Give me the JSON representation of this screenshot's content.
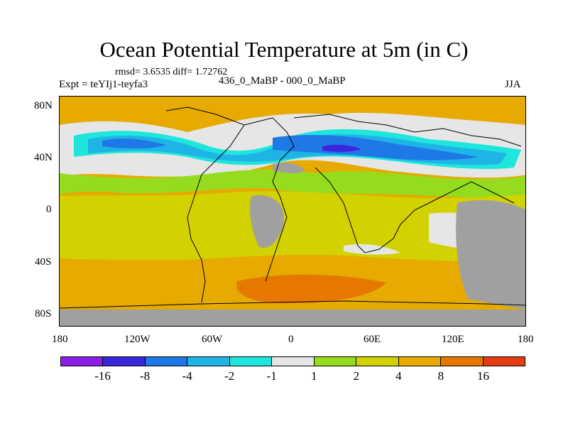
{
  "title": "Ocean Potential Temperature at 5m (in C)",
  "stats": "rmsd= 3.6535  diff= 1.72762",
  "experiment": "Expt = teYIj1-teyfa3",
  "comparison": "436_0_MaBP - 000_0_MaBP",
  "season": "JJA",
  "y_axis_labels": [
    "80N",
    "40N",
    "0",
    "40S",
    "80S"
  ],
  "x_axis_labels": [
    "180",
    "120W",
    "60W",
    "0",
    "60E",
    "120E",
    "180"
  ],
  "colorbar": {
    "colors": [
      "#8c1ee6",
      "#3c28dc",
      "#1e78e6",
      "#1eb4e6",
      "#1ee6dc",
      "#e6e6e6",
      "#96dc1e",
      "#d2d200",
      "#e6aa00",
      "#e67800",
      "#e63c14"
    ],
    "labels": [
      "-16",
      "-8",
      "-4",
      "-2",
      "-1",
      "1",
      "2",
      "4",
      "8",
      "16"
    ]
  },
  "colors": {
    "land_mask": "#a0a0a0",
    "warm_orange": "#e6aa00",
    "dark_orange": "#e67800",
    "yellow": "#d2d200",
    "green": "#96dc1e",
    "white": "#e6e6e6",
    "cyan": "#1ee6dc",
    "light_blue": "#1eb4e6",
    "blue": "#1e78e6",
    "dark_blue": "#3c28dc"
  }
}
